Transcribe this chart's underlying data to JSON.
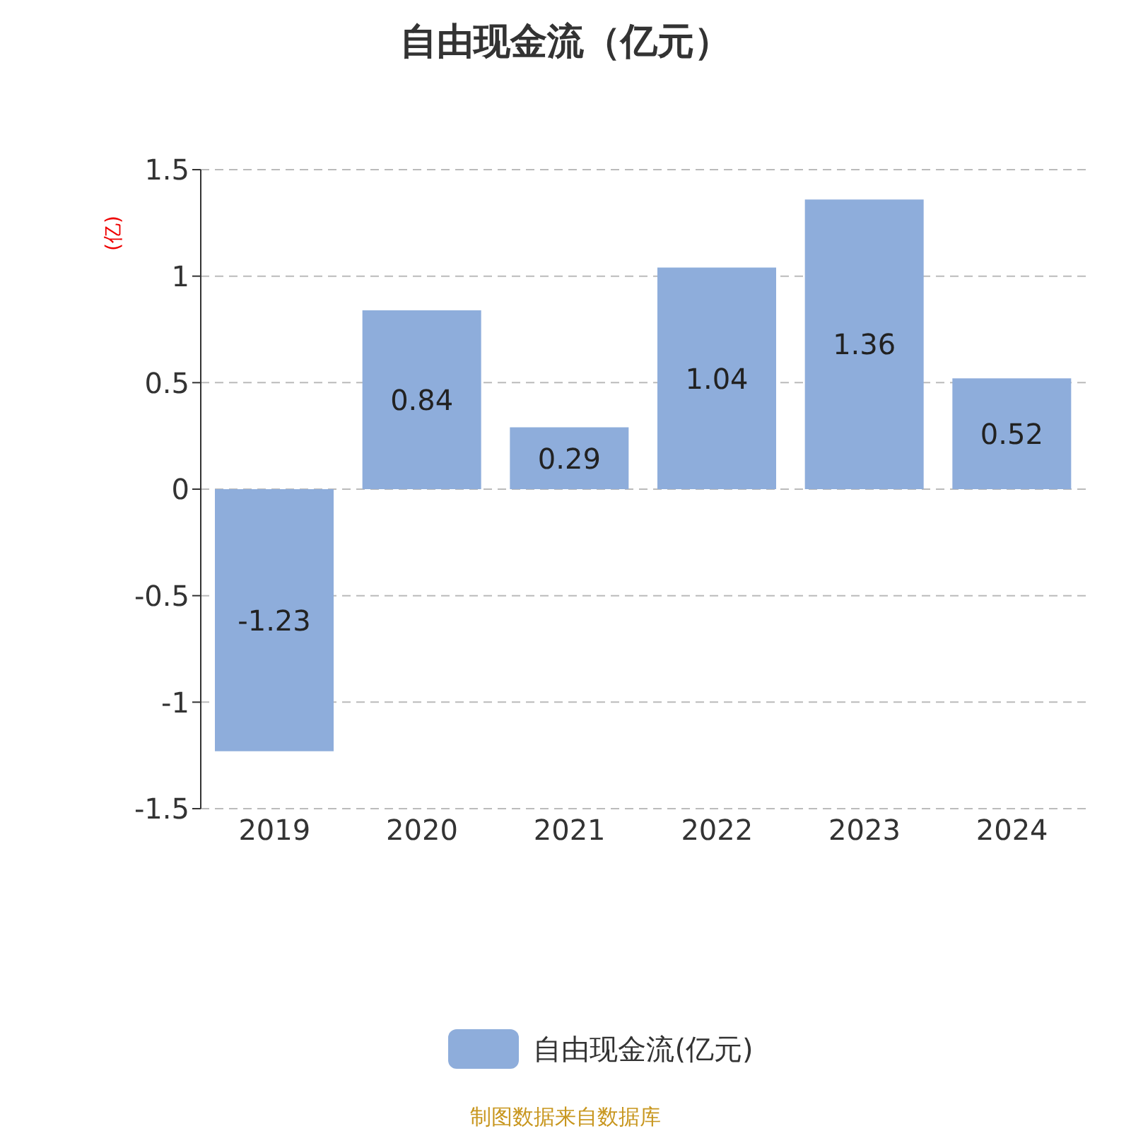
{
  "chart_data": {
    "type": "bar",
    "title": "自由现金流（亿元）",
    "ylabel": "(亿)",
    "categories": [
      "2019",
      "2020",
      "2021",
      "2022",
      "2023",
      "2024"
    ],
    "series": [
      {
        "name": "自由现金流(亿元)",
        "color": "#8eaddb",
        "values": [
          -1.23,
          0.84,
          0.29,
          1.04,
          1.36,
          0.52
        ]
      }
    ],
    "ylim": [
      -1.5,
      1.5
    ],
    "yticks": [
      -1.5,
      -1,
      -0.5,
      0,
      0.5,
      1,
      1.5
    ],
    "grid": "y",
    "legend": "bottom",
    "data_labels": true,
    "annotations": [
      "制图数据来自数据库"
    ]
  }
}
